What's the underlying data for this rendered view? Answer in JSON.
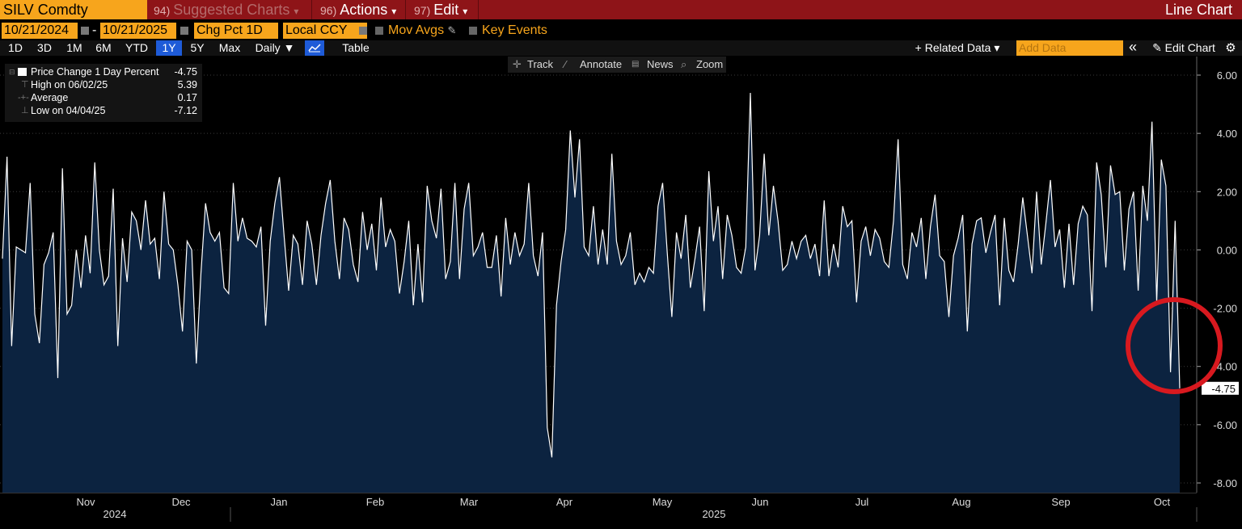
{
  "header": {
    "ticker": "SILV Comdty",
    "suggested_num": "94)",
    "suggested_label": "Suggested Charts",
    "suggested_arrow": "▾",
    "actions_num": "96)",
    "actions_label": "Actions",
    "actions_arrow": "▾",
    "edit_num": "97)",
    "edit_label": "Edit",
    "edit_arrow": "▾",
    "chart_type": "Line Chart"
  },
  "params": {
    "start_date": "10/21/2024",
    "dash": "-",
    "end_date": "10/21/2025",
    "field": "Chg Pct 1D",
    "currency": "Local CCY",
    "mov_avgs": "Mov Avgs",
    "key_events": "Key Events"
  },
  "periods": [
    "1D",
    "3D",
    "1M",
    "6M",
    "YTD",
    "1Y",
    "5Y",
    "Max"
  ],
  "selected_period": "1Y",
  "frequency": "Daily ▼",
  "table_label": "Table",
  "related_data": "+ Related Data ▾",
  "add_data_placeholder": "Add Data",
  "collapse": "«",
  "edit_chart": "✎ Edit Chart",
  "gear": "⚙",
  "tools": {
    "track": "Track",
    "annotate": "Annotate",
    "news": "News",
    "zoom": "Zoom"
  },
  "legend": {
    "series": "Price Change 1 Day Percent",
    "last": "-4.75",
    "high_label": "High on 06/02/25",
    "high": "5.39",
    "avg_label": "Average",
    "avg": "0.17",
    "low_label": "Low on 04/04/25",
    "low": "-7.12"
  },
  "colors": {
    "fill": "#0c2340",
    "line": "#ffffff",
    "highlight_circle": "#d8191f",
    "accent": "#f7a51c",
    "header": "#8e1418"
  },
  "chart_data": {
    "type": "area",
    "ylim": [
      -8,
      6
    ],
    "yticks": [
      "6.00",
      "4.00",
      "2.00",
      "0.00",
      "-2.00",
      "-4.00",
      "-6.00",
      "-8.00"
    ],
    "months": [
      "Nov",
      "Dec",
      "Jan",
      "Feb",
      "Mar",
      "Apr",
      "May",
      "Jun",
      "Jul",
      "Aug",
      "Sep",
      "Oct"
    ],
    "years": [
      "2024",
      "2025"
    ],
    "last_label": "-4.75",
    "values": [
      -0.3,
      3.2,
      -3.3,
      0.1,
      0.0,
      -0.1,
      2.3,
      -2.2,
      -3.2,
      -0.5,
      -0.1,
      0.6,
      -4.4,
      2.8,
      -2.2,
      -1.9,
      0.0,
      -1.3,
      0.5,
      -0.8,
      3.0,
      0.0,
      -1.2,
      -0.9,
      2.1,
      -3.3,
      0.4,
      -1.1,
      1.3,
      1.0,
      0.0,
      1.7,
      0.2,
      0.4,
      -1.0,
      2.0,
      0.2,
      0.0,
      -1.2,
      -2.8,
      0.3,
      0.0,
      -3.9,
      -0.8,
      1.6,
      0.6,
      0.3,
      0.6,
      -1.3,
      -1.5,
      2.3,
      0.3,
      1.1,
      0.4,
      0.3,
      0.1,
      0.8,
      -2.6,
      0.3,
      1.6,
      2.5,
      0.5,
      -1.4,
      0.5,
      0.2,
      -1.2,
      1.0,
      0.2,
      -1.2,
      0.5,
      1.6,
      2.4,
      0.3,
      -1.0,
      1.1,
      0.7,
      -0.5,
      -1.1,
      1.3,
      0.0,
      0.9,
      -0.7,
      1.8,
      0.1,
      0.7,
      0.3,
      -1.5,
      -0.4,
      1.0,
      -1.9,
      0.2,
      -1.8,
      2.2,
      1.0,
      0.4,
      2.1,
      -1.0,
      -0.4,
      2.3,
      -1.0,
      1.4,
      2.3,
      -0.2,
      0.1,
      0.6,
      -0.6,
      -0.6,
      0.5,
      -1.6,
      1.1,
      -0.5,
      0.6,
      -0.2,
      0.2,
      2.3,
      -0.2,
      -0.9,
      0.6,
      -6.1,
      -7.12,
      -1.9,
      -0.4,
      0.7,
      4.1,
      1.8,
      3.8,
      0.1,
      -0.2,
      1.5,
      -0.5,
      0.7,
      -0.5,
      3.3,
      0.3,
      -0.5,
      -0.2,
      0.6,
      -1.2,
      -0.8,
      -1.1,
      -0.6,
      -0.8,
      1.5,
      2.3,
      -0.1,
      -2.3,
      0.6,
      -0.3,
      1.2,
      -1.3,
      -0.3,
      0.8,
      -2.1,
      2.7,
      0.3,
      1.5,
      -1.0,
      1.2,
      0.5,
      -0.6,
      -0.8,
      0.1,
      5.39,
      -0.7,
      0.5,
      3.3,
      0.5,
      2.2,
      1.0,
      -0.7,
      -0.5,
      0.3,
      -0.3,
      0.3,
      0.5,
      -0.3,
      0.2,
      -0.9,
      1.7,
      -0.9,
      0.2,
      -0.6,
      1.5,
      0.8,
      1.0,
      -1.8,
      0.3,
      0.8,
      -0.2,
      0.7,
      0.4,
      -0.4,
      -0.6,
      1.0,
      3.8,
      -0.5,
      -1.0,
      0.6,
      0.1,
      1.1,
      -1.0,
      0.8,
      1.9,
      -0.2,
      -0.4,
      -2.3,
      -0.2,
      0.4,
      1.2,
      -2.8,
      0.2,
      1.0,
      1.1,
      -0.1,
      0.6,
      1.2,
      -1.9,
      1.1,
      -0.7,
      -1.1,
      0.2,
      1.8,
      0.5,
      -0.8,
      2.0,
      -0.5,
      0.9,
      2.4,
      0.1,
      0.7,
      -1.3,
      0.9,
      -1.2,
      0.9,
      1.5,
      1.2,
      -2.1,
      3.0,
      1.9,
      -0.6,
      2.9,
      1.9,
      2.0,
      -0.7,
      1.4,
      2.0,
      -1.4,
      2.2,
      1.0,
      4.4,
      -1.8,
      3.1,
      2.2,
      -4.2,
      1.0,
      -4.75
    ]
  }
}
